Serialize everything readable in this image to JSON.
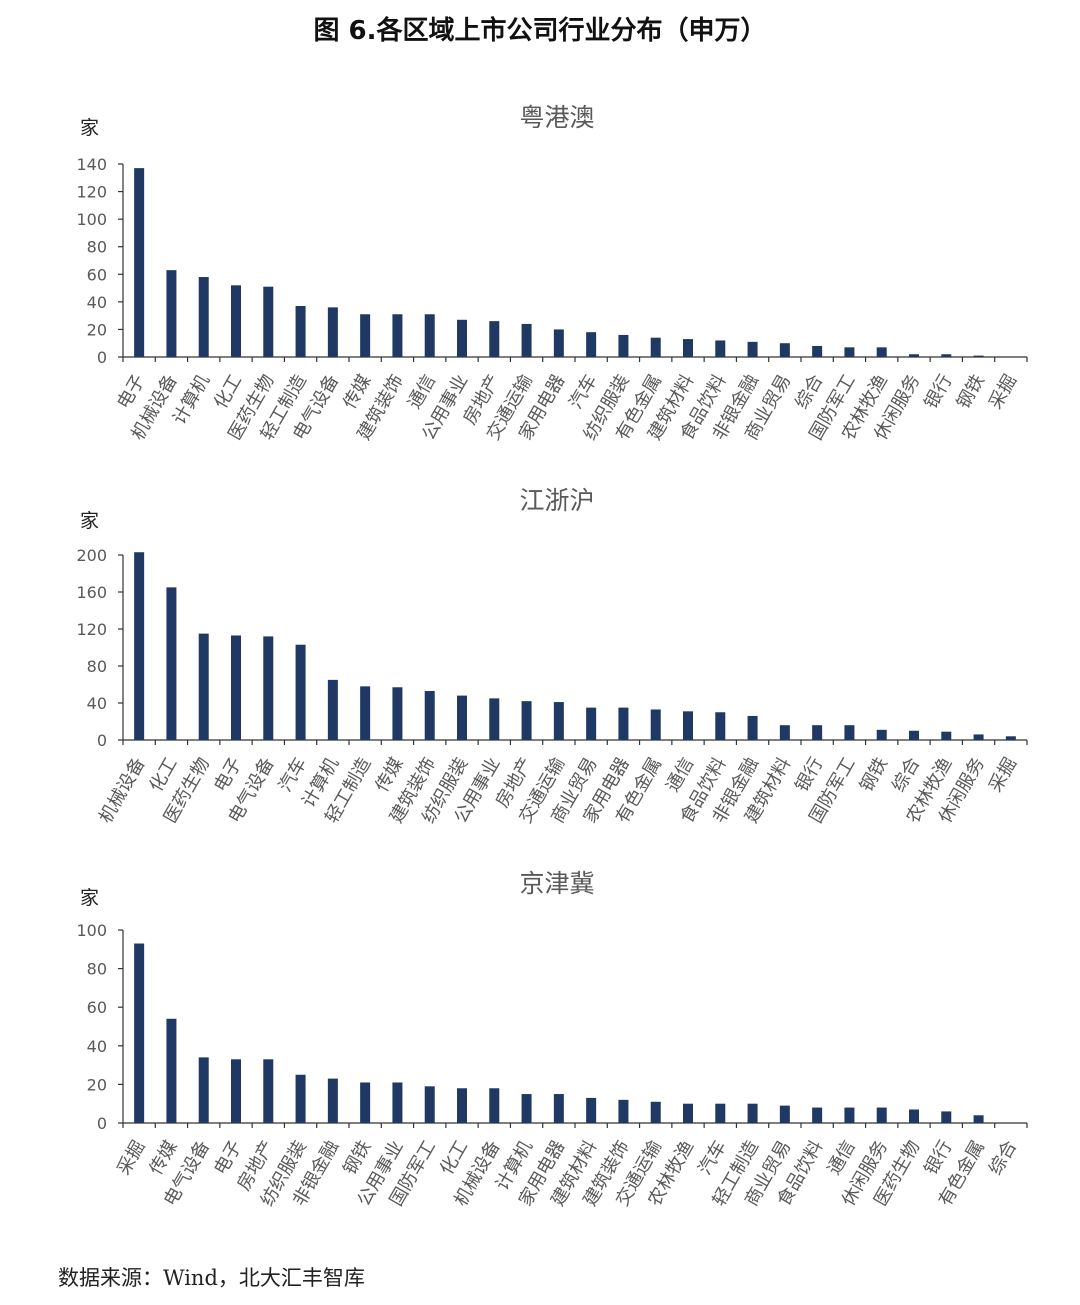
{
  "figure_title": "图 6.各区域上市公司行业分布（申万）",
  "source": "数据来源：Wind，北大汇丰智库",
  "colors": {
    "bar": "#1f3864",
    "axis": "#333333",
    "text": "#595959"
  },
  "chart_data": [
    {
      "type": "bar",
      "title": "粤港澳",
      "ylabel": "家",
      "ylim": [
        0,
        140
      ],
      "yticks": [
        0,
        20,
        40,
        60,
        80,
        100,
        120,
        140
      ],
      "categories": [
        "电子",
        "机械设备",
        "计算机",
        "化工",
        "医药生物",
        "轻工制造",
        "电气设备",
        "传媒",
        "建筑装饰",
        "通信",
        "公用事业",
        "房地产",
        "交通运输",
        "家用电器",
        "汽车",
        "纺织服装",
        "有色金属",
        "建筑材料",
        "食品饮料",
        "非银金融",
        "商业贸易",
        "综合",
        "国防军工",
        "农林牧渔",
        "休闲服务",
        "银行",
        "钢铁",
        "采掘"
      ],
      "values": [
        137,
        63,
        58,
        52,
        51,
        37,
        36,
        31,
        31,
        31,
        27,
        26,
        24,
        20,
        18,
        16,
        14,
        13,
        12,
        11,
        10,
        8,
        7,
        7,
        2,
        2,
        1,
        0
      ]
    },
    {
      "type": "bar",
      "title": "江浙沪",
      "ylabel": "家",
      "ylim": [
        0,
        200
      ],
      "yticks": [
        0,
        40,
        80,
        120,
        160,
        200
      ],
      "categories": [
        "机械设备",
        "化工",
        "医药生物",
        "电子",
        "电气设备",
        "汽车",
        "计算机",
        "轻工制造",
        "传媒",
        "建筑装饰",
        "纺织服装",
        "公用事业",
        "房地产",
        "交通运输",
        "商业贸易",
        "家用电器",
        "有色金属",
        "通信",
        "食品饮料",
        "非银金融",
        "建筑材料",
        "银行",
        "国防军工",
        "钢铁",
        "综合",
        "农林牧渔",
        "休闲服务",
        "采掘"
      ],
      "values": [
        203,
        165,
        115,
        113,
        112,
        103,
        65,
        58,
        57,
        53,
        48,
        45,
        42,
        41,
        35,
        35,
        33,
        31,
        30,
        26,
        16,
        16,
        16,
        11,
        10,
        9,
        6,
        4
      ]
    },
    {
      "type": "bar",
      "title": "京津冀",
      "ylabel": "家",
      "ylim": [
        0,
        100
      ],
      "yticks": [
        0,
        20,
        40,
        60,
        80,
        100
      ],
      "categories": [
        "采掘",
        "传媒",
        "电气设备",
        "电子",
        "房地产",
        "纺织服装",
        "非银金融",
        "钢铁",
        "公用事业",
        "国防军工",
        "化工",
        "机械设备",
        "计算机",
        "家用电器",
        "建筑材料",
        "建筑装饰",
        "交通运输",
        "农林牧渔",
        "汽车",
        "轻工制造",
        "商业贸易",
        "食品饮料",
        "通信",
        "休闲服务",
        "医药生物",
        "银行",
        "有色金属",
        "综合"
      ],
      "values": [
        93,
        54,
        34,
        33,
        33,
        25,
        23,
        21,
        21,
        19,
        18,
        18,
        15,
        15,
        13,
        12,
        11,
        10,
        10,
        10,
        9,
        8,
        8,
        8,
        7,
        6,
        4,
        0
      ]
    }
  ]
}
